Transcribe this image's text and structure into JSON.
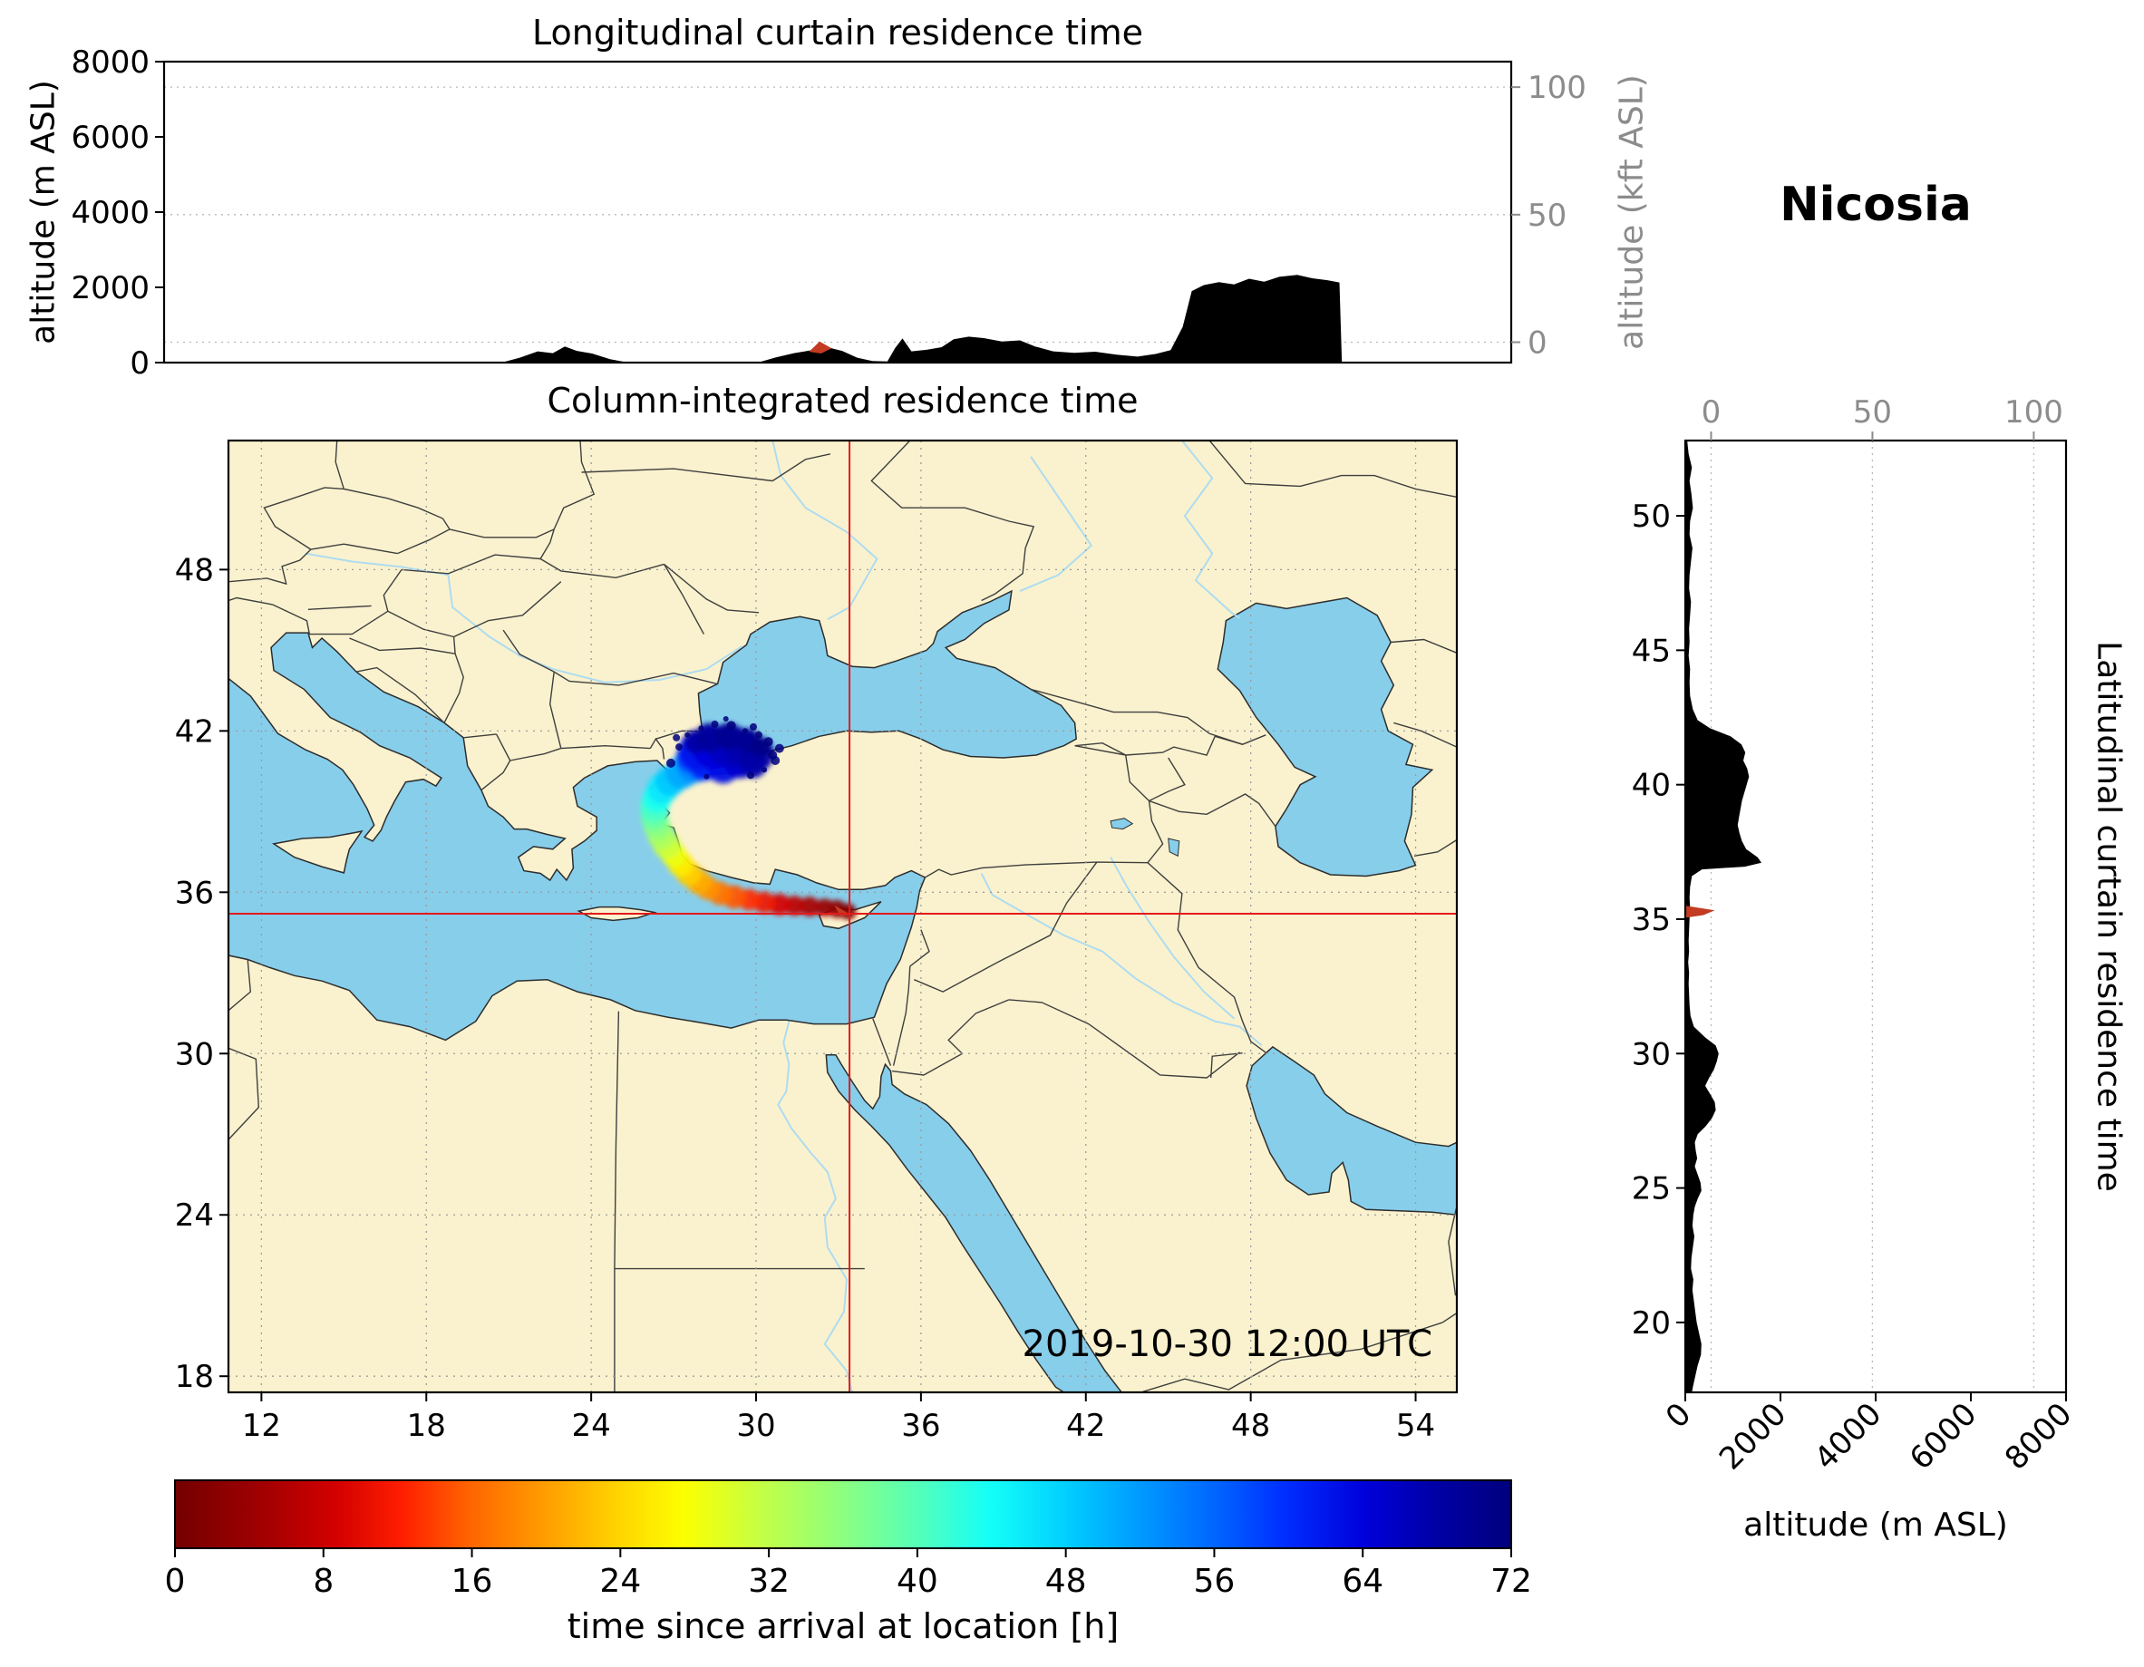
{
  "figure": {
    "station_label": "Nicosia"
  },
  "chart_data": [
    {
      "id": "longitudinal-curtain",
      "type": "area",
      "title": "Longitudinal curtain residence time",
      "ylabel_left": "altitude (m ASL)",
      "ylabel_right": "altitude (kft ASL)",
      "xlim_lon": [
        10.8,
        55.5
      ],
      "ylim_m": [
        0,
        8000
      ],
      "yticks_m": [
        0,
        2000,
        4000,
        6000,
        8000
      ],
      "right_axis_kft": {
        "lim": [
          -8,
          110
        ],
        "ticks": [
          0,
          50,
          100
        ]
      },
      "fill_color": "#000000",
      "highlight_color": "#c23b22",
      "profile_lon_alt_m": [
        [
          10.8,
          0
        ],
        [
          22.0,
          0
        ],
        [
          22.6,
          130
        ],
        [
          23.2,
          300
        ],
        [
          23.7,
          250
        ],
        [
          24.1,
          430
        ],
        [
          24.5,
          310
        ],
        [
          25.0,
          240
        ],
        [
          25.6,
          90
        ],
        [
          26.2,
          0
        ],
        [
          30.5,
          0
        ],
        [
          31.1,
          140
        ],
        [
          31.7,
          250
        ],
        [
          32.3,
          330
        ],
        [
          32.8,
          410
        ],
        [
          33.3,
          310
        ],
        [
          33.8,
          130
        ],
        [
          34.3,
          40
        ],
        [
          34.8,
          30
        ],
        [
          35.05,
          380
        ],
        [
          35.3,
          640
        ],
        [
          35.6,
          300
        ],
        [
          36.1,
          340
        ],
        [
          36.6,
          410
        ],
        [
          37.0,
          620
        ],
        [
          37.5,
          690
        ],
        [
          38.0,
          650
        ],
        [
          38.6,
          560
        ],
        [
          39.2,
          590
        ],
        [
          39.7,
          430
        ],
        [
          40.3,
          300
        ],
        [
          41.0,
          260
        ],
        [
          41.7,
          290
        ],
        [
          42.4,
          210
        ],
        [
          43.1,
          160
        ],
        [
          43.7,
          230
        ],
        [
          44.2,
          330
        ],
        [
          44.6,
          950
        ],
        [
          44.9,
          1900
        ],
        [
          45.3,
          2060
        ],
        [
          45.8,
          2140
        ],
        [
          46.3,
          2080
        ],
        [
          46.8,
          2230
        ],
        [
          47.3,
          2150
        ],
        [
          47.8,
          2280
        ],
        [
          48.4,
          2330
        ],
        [
          48.9,
          2240
        ],
        [
          49.4,
          2190
        ],
        [
          49.8,
          2130
        ],
        [
          49.88,
          0
        ],
        [
          55.5,
          0
        ]
      ],
      "highlight_patch_lon_alt_m": [
        [
          32.2,
          290
        ],
        [
          32.55,
          560
        ],
        [
          32.95,
          380
        ],
        [
          32.6,
          240
        ]
      ]
    },
    {
      "id": "map",
      "type": "scatter",
      "title": "Column-integrated residence time",
      "timestamp": "2019-10-30 12:00 UTC",
      "lon_lim": [
        10.8,
        55.5
      ],
      "lat_lim": [
        17.4,
        52.8
      ],
      "lon_ticks": [
        12,
        18,
        24,
        30,
        36,
        42,
        48,
        54
      ],
      "lat_ticks": [
        18,
        24,
        30,
        36,
        42,
        48
      ],
      "land_color": "#faf2ce",
      "sea_color": "#87ceeb",
      "crosshair": {
        "lon": 33.4,
        "lat": 35.2,
        "color": "#e31a1c"
      },
      "receptor_marker_lonlat": [
        [
          33.45,
          35.16
        ],
        [
          32.85,
          35.52
        ],
        [
          33.05,
          35.12
        ]
      ],
      "trajectory_points": [
        [
          33.35,
          35.28,
          1,
          9
        ],
        [
          32.95,
          35.38,
          2.5,
          10
        ],
        [
          32.5,
          35.43,
          4,
          10
        ],
        [
          31.95,
          35.47,
          5.5,
          11
        ],
        [
          31.4,
          35.5,
          7,
          11
        ],
        [
          30.85,
          35.55,
          9,
          12
        ],
        [
          30.3,
          35.62,
          11,
          12
        ],
        [
          29.75,
          35.72,
          13,
          12
        ],
        [
          29.2,
          35.82,
          15,
          13
        ],
        [
          28.7,
          35.95,
          17,
          13
        ],
        [
          28.25,
          36.15,
          19,
          13
        ],
        [
          27.9,
          36.4,
          21,
          14
        ],
        [
          27.55,
          36.7,
          23.5,
          14
        ],
        [
          27.25,
          37.05,
          26,
          14
        ],
        [
          27.0,
          37.4,
          28.5,
          14
        ],
        [
          26.75,
          37.75,
          31,
          15
        ],
        [
          26.55,
          38.1,
          33.5,
          15
        ],
        [
          26.4,
          38.45,
          36,
          15
        ],
        [
          26.3,
          38.8,
          38.5,
          15
        ],
        [
          26.3,
          39.15,
          41,
          16
        ],
        [
          26.4,
          39.5,
          43.5,
          16
        ],
        [
          26.6,
          39.85,
          46,
          17
        ],
        [
          26.9,
          40.15,
          48.5,
          17
        ],
        [
          27.3,
          40.45,
          51,
          18
        ],
        [
          27.75,
          40.7,
          53.5,
          19
        ],
        [
          28.2,
          40.9,
          56,
          20
        ],
        [
          28.7,
          41.05,
          58,
          21
        ],
        [
          29.2,
          41.15,
          60,
          21
        ],
        [
          27.9,
          41.25,
          62,
          22
        ],
        [
          28.45,
          41.4,
          64,
          24
        ],
        [
          29.0,
          41.45,
          66,
          24
        ],
        [
          29.55,
          41.35,
          67,
          22
        ],
        [
          30.0,
          41.15,
          68,
          20
        ],
        [
          28.1,
          40.75,
          61,
          18
        ],
        [
          28.8,
          40.65,
          63,
          18
        ],
        [
          29.4,
          40.8,
          65,
          17
        ],
        [
          29.9,
          40.75,
          67,
          15
        ],
        [
          27.6,
          41.0,
          59,
          16
        ],
        [
          28.3,
          41.75,
          69,
          16
        ],
        [
          29.0,
          41.8,
          70,
          15
        ],
        [
          29.7,
          41.65,
          70,
          13
        ],
        [
          30.2,
          41.4,
          71,
          11
        ],
        [
          27.8,
          41.6,
          68,
          13
        ]
      ],
      "trajectory_speckles_lonlat": [
        [
          28.0,
          42.1
        ],
        [
          28.5,
          42.25
        ],
        [
          29.1,
          42.2
        ],
        [
          29.6,
          42.0
        ],
        [
          30.1,
          41.85
        ],
        [
          30.45,
          41.6
        ],
        [
          27.5,
          41.85
        ],
        [
          27.2,
          41.4
        ],
        [
          30.6,
          41.1
        ],
        [
          30.3,
          40.55
        ],
        [
          29.8,
          40.35
        ],
        [
          26.9,
          40.8
        ],
        [
          28.9,
          42.45
        ],
        [
          29.9,
          42.15
        ],
        [
          30.7,
          40.9
        ],
        [
          28.2,
          40.3
        ],
        [
          27.1,
          41.75
        ],
        [
          30.85,
          41.35
        ]
      ],
      "colorbar": {
        "label": "time since arrival at location [h]",
        "lim_h": [
          0,
          72
        ],
        "ticks_h": [
          0,
          8,
          16,
          24,
          32,
          40,
          48,
          56,
          64,
          72
        ],
        "stops": [
          [
            0,
            "#730000"
          ],
          [
            0.07,
            "#a50000"
          ],
          [
            0.12,
            "#d30000"
          ],
          [
            0.17,
            "#ff1e00"
          ],
          [
            0.22,
            "#ff6400"
          ],
          [
            0.28,
            "#ffa000"
          ],
          [
            0.33,
            "#ffd200"
          ],
          [
            0.38,
            "#fcff00"
          ],
          [
            0.44,
            "#c3ff46"
          ],
          [
            0.5,
            "#8cff80"
          ],
          [
            0.56,
            "#50ffbe"
          ],
          [
            0.61,
            "#14fff8"
          ],
          [
            0.67,
            "#00ccff"
          ],
          [
            0.72,
            "#009cff"
          ],
          [
            0.78,
            "#0064ff"
          ],
          [
            0.83,
            "#002eff"
          ],
          [
            0.89,
            "#0000db"
          ],
          [
            0.94,
            "#0000a8"
          ],
          [
            1,
            "#00007d"
          ]
        ]
      }
    },
    {
      "id": "latitudinal-curtain",
      "type": "area",
      "title": "Latitudinal curtain residence time",
      "xlabel": "altitude (m ASL)",
      "xlim_m": [
        0,
        8000
      ],
      "xticks_m": [
        0,
        2000,
        4000,
        6000,
        8000
      ],
      "top_axis_kft": {
        "lim": [
          -8,
          110
        ],
        "ticks": [
          0,
          50,
          100
        ]
      },
      "lat_lim": [
        17.4,
        52.8
      ],
      "lat_ticks": [
        20,
        25,
        30,
        35,
        40,
        45,
        50
      ],
      "fill_color": "#000000",
      "highlight_color": "#c23b22",
      "profile_lat_alt_m": [
        [
          52.8,
          40
        ],
        [
          52.3,
          70
        ],
        [
          51.8,
          140
        ],
        [
          51.3,
          90
        ],
        [
          50.8,
          130
        ],
        [
          50.3,
          160
        ],
        [
          49.8,
          100
        ],
        [
          49.3,
          90
        ],
        [
          48.8,
          150
        ],
        [
          48.3,
          120
        ],
        [
          47.8,
          90
        ],
        [
          47.3,
          80
        ],
        [
          46.8,
          120
        ],
        [
          46.3,
          100
        ],
        [
          45.8,
          80
        ],
        [
          45.3,
          90
        ],
        [
          44.8,
          70
        ],
        [
          44.3,
          100
        ],
        [
          43.8,
          90
        ],
        [
          43.3,
          100
        ],
        [
          42.8,
          160
        ],
        [
          42.4,
          260
        ],
        [
          42.1,
          520
        ],
        [
          41.8,
          950
        ],
        [
          41.5,
          1180
        ],
        [
          41.2,
          1260
        ],
        [
          40.9,
          1220
        ],
        [
          40.6,
          1300
        ],
        [
          40.3,
          1340
        ],
        [
          40.0,
          1290
        ],
        [
          39.7,
          1240
        ],
        [
          39.4,
          1190
        ],
        [
          39.1,
          1160
        ],
        [
          38.8,
          1130
        ],
        [
          38.5,
          1100
        ],
        [
          38.2,
          1140
        ],
        [
          37.9,
          1190
        ],
        [
          37.6,
          1280
        ],
        [
          37.3,
          1520
        ],
        [
          37.1,
          1600
        ],
        [
          36.95,
          1250
        ],
        [
          36.85,
          350
        ],
        [
          36.6,
          140
        ],
        [
          36.2,
          100
        ],
        [
          35.8,
          90
        ],
        [
          35.4,
          100
        ],
        [
          35.0,
          90
        ],
        [
          34.6,
          80
        ],
        [
          34.2,
          70
        ],
        [
          33.8,
          80
        ],
        [
          33.4,
          60
        ],
        [
          33.0,
          80
        ],
        [
          32.6,
          70
        ],
        [
          32.2,
          80
        ],
        [
          31.8,
          90
        ],
        [
          31.4,
          110
        ],
        [
          31.0,
          180
        ],
        [
          30.6,
          420
        ],
        [
          30.3,
          640
        ],
        [
          30.0,
          700
        ],
        [
          29.7,
          660
        ],
        [
          29.4,
          600
        ],
        [
          29.1,
          500
        ],
        [
          28.8,
          420
        ],
        [
          28.5,
          520
        ],
        [
          28.2,
          620
        ],
        [
          27.9,
          640
        ],
        [
          27.6,
          560
        ],
        [
          27.3,
          430
        ],
        [
          27.0,
          260
        ],
        [
          26.7,
          200
        ],
        [
          26.4,
          220
        ],
        [
          26.1,
          250
        ],
        [
          25.8,
          200
        ],
        [
          25.5,
          260
        ],
        [
          25.2,
          320
        ],
        [
          24.9,
          340
        ],
        [
          24.6,
          260
        ],
        [
          24.3,
          200
        ],
        [
          24.0,
          170
        ],
        [
          23.6,
          150
        ],
        [
          23.2,
          190
        ],
        [
          22.8,
          160
        ],
        [
          22.4,
          130
        ],
        [
          22.0,
          120
        ],
        [
          21.6,
          170
        ],
        [
          21.2,
          150
        ],
        [
          20.8,
          180
        ],
        [
          20.4,
          210
        ],
        [
          20.0,
          240
        ],
        [
          19.6,
          290
        ],
        [
          19.2,
          340
        ],
        [
          18.8,
          330
        ],
        [
          18.4,
          260
        ],
        [
          18.0,
          210
        ],
        [
          17.6,
          160
        ],
        [
          17.4,
          140
        ]
      ],
      "highlight_patch_lat_alt_m": [
        [
          35.5,
          0
        ],
        [
          35.33,
          620
        ],
        [
          35.15,
          380
        ],
        [
          35.05,
          0
        ]
      ]
    }
  ]
}
